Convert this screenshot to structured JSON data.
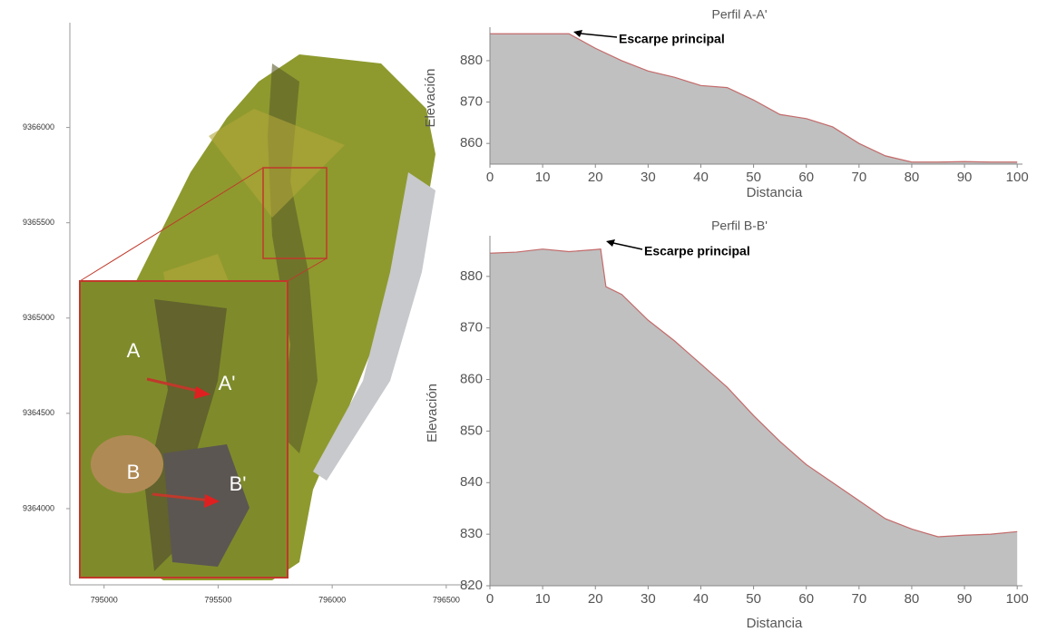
{
  "map": {
    "xlim": [
      794850,
      796600
    ],
    "ylim": [
      9363600,
      9366550
    ],
    "xticks": [
      795000,
      795500,
      796000,
      796500
    ],
    "yticks": [
      9364000,
      9364500,
      9365000,
      9365500,
      9366000
    ],
    "labels": [
      "A",
      "A'",
      "B",
      "B'"
    ]
  },
  "chart_data": [
    {
      "type": "area",
      "title": "Perfil A-A'",
      "x_label": "Distancia",
      "y_label": "Elevación",
      "annotation": "Escarpe principal",
      "color": "#c0c0c0",
      "line_color": "#c46a6a",
      "x": [
        0,
        5,
        10,
        15,
        20,
        25,
        30,
        35,
        40,
        45,
        50,
        55,
        60,
        65,
        70,
        75,
        80,
        85,
        90,
        95,
        100
      ],
      "values": [
        886.5,
        886.5,
        886.5,
        886.5,
        883,
        880,
        877.5,
        876,
        874,
        873.5,
        870.5,
        867,
        866,
        864,
        860,
        857,
        855.5,
        855.5,
        855.6,
        855.5,
        855.5
      ],
      "xlim": [
        0,
        101
      ],
      "ylim": [
        855,
        887
      ],
      "xticks": [
        0,
        10,
        20,
        30,
        40,
        50,
        60,
        70,
        80,
        90,
        100
      ],
      "yticks": [
        860,
        870,
        880
      ]
    },
    {
      "type": "area",
      "title": "Perfil B-B'",
      "x_label": "Distancia",
      "y_label": "Elevación",
      "annotation": "Escarpe principal",
      "color": "#c0c0c0",
      "line_color": "#c46a6a",
      "x": [
        0,
        5,
        10,
        15,
        20,
        21,
        22,
        25,
        30,
        35,
        40,
        45,
        50,
        55,
        60,
        65,
        70,
        75,
        80,
        85,
        90,
        95,
        100
      ],
      "values": [
        884.5,
        884.7,
        885.3,
        884.8,
        885.2,
        885.3,
        878,
        876.5,
        871.5,
        867.5,
        863,
        858.5,
        853,
        848,
        843.5,
        840,
        836.5,
        833,
        831,
        829.5,
        829.8,
        830,
        830.5
      ],
      "xlim": [
        0,
        101
      ],
      "ylim": [
        820,
        887
      ],
      "xticks": [
        0,
        10,
        20,
        30,
        40,
        50,
        60,
        70,
        80,
        90,
        100
      ],
      "yticks": [
        820,
        830,
        840,
        850,
        860,
        870,
        880
      ]
    }
  ]
}
